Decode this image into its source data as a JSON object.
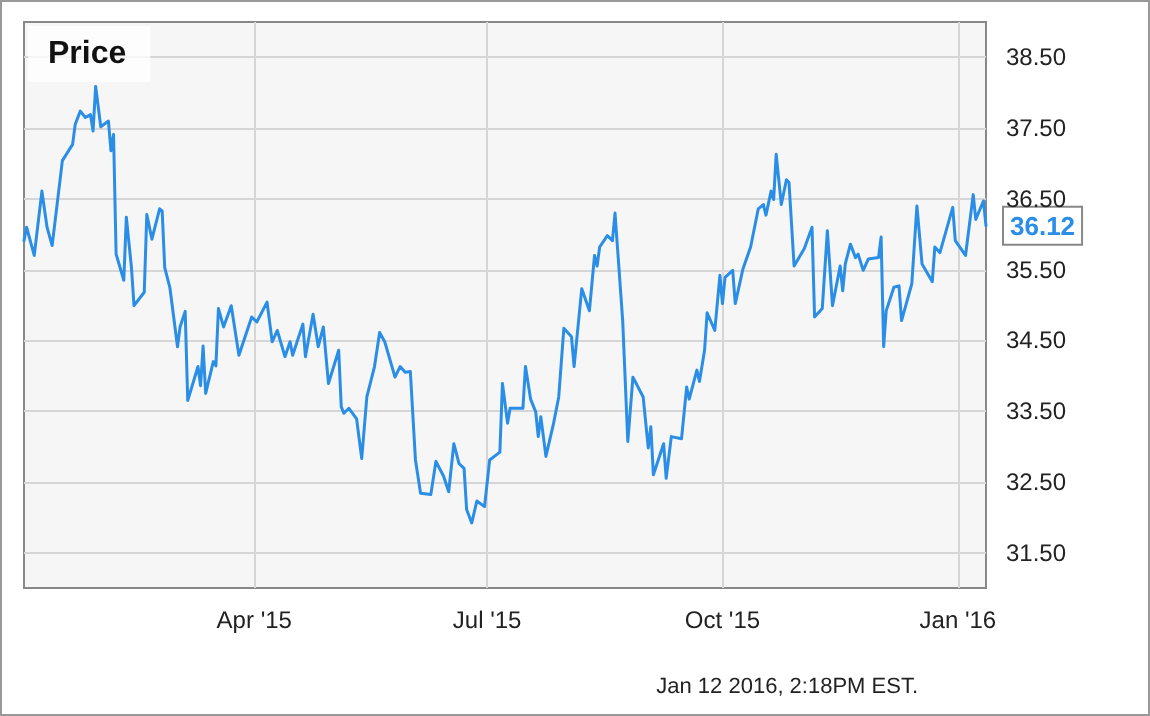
{
  "chart_data": {
    "type": "line",
    "title": "Price",
    "x": [
      "2015-01-01",
      "2015-01-02",
      "2015-01-05",
      "2015-01-08",
      "2015-01-10",
      "2015-01-12",
      "2015-01-16",
      "2015-01-20",
      "2015-01-21",
      "2015-01-23",
      "2015-01-25",
      "2015-01-27",
      "2015-01-28",
      "2015-01-29",
      "2015-01-31",
      "2015-02-03",
      "2015-02-04",
      "2015-02-05",
      "2015-02-06",
      "2015-02-09",
      "2015-02-10",
      "2015-02-12",
      "2015-02-13",
      "2015-02-17",
      "2015-02-18",
      "2015-02-20",
      "2015-02-23",
      "2015-02-24",
      "2015-02-25",
      "2015-02-27",
      "2015-03-02",
      "2015-03-03",
      "2015-03-05",
      "2015-03-06",
      "2015-03-10",
      "2015-03-11",
      "2015-03-12",
      "2015-03-13",
      "2015-03-16",
      "2015-03-17",
      "2015-03-18",
      "2015-03-20",
      "2015-03-23",
      "2015-03-26",
      "2015-03-31",
      "2015-04-02",
      "2015-04-06",
      "2015-04-08",
      "2015-04-10",
      "2015-04-13",
      "2015-04-15",
      "2015-04-16",
      "2015-04-20",
      "2015-04-21",
      "2015-04-24",
      "2015-04-26",
      "2015-04-28",
      "2015-04-30",
      "2015-05-04",
      "2015-05-05",
      "2015-05-06",
      "2015-05-08",
      "2015-05-11",
      "2015-05-13",
      "2015-05-15",
      "2015-05-18",
      "2015-05-20",
      "2015-05-22",
      "2015-05-26",
      "2015-05-28",
      "2015-05-30",
      "2015-06-01",
      "2015-06-03",
      "2015-06-05",
      "2015-06-09",
      "2015-06-11",
      "2015-06-14",
      "2015-06-16",
      "2015-06-18",
      "2015-06-20",
      "2015-06-22",
      "2015-06-23",
      "2015-06-25",
      "2015-06-27",
      "2015-06-30",
      "2015-07-02",
      "2015-07-06",
      "2015-07-07",
      "2015-07-09",
      "2015-07-10",
      "2015-07-15",
      "2015-07-16",
      "2015-07-18",
      "2015-07-20",
      "2015-07-21",
      "2015-07-22",
      "2015-07-24",
      "2015-07-27",
      "2015-07-29",
      "2015-07-31",
      "2015-08-03",
      "2015-08-04",
      "2015-08-07",
      "2015-08-10",
      "2015-08-12",
      "2015-08-13",
      "2015-08-14",
      "2015-08-17",
      "2015-08-19",
      "2015-08-20",
      "2015-08-23",
      "2015-08-25",
      "2015-08-27",
      "2015-08-31",
      "2015-09-02",
      "2015-09-03",
      "2015-09-04",
      "2015-09-08",
      "2015-09-09",
      "2015-09-11",
      "2015-09-15",
      "2015-09-17",
      "2015-09-18",
      "2015-09-21",
      "2015-09-22",
      "2015-09-24",
      "2015-09-25",
      "2015-09-28",
      "2015-09-30",
      "2015-10-01",
      "2015-10-02",
      "2015-10-05",
      "2015-10-06",
      "2015-10-09",
      "2015-10-12",
      "2015-10-15",
      "2015-10-17",
      "2015-10-18",
      "2015-10-20",
      "2015-10-21",
      "2015-10-22",
      "2015-10-24",
      "2015-10-26",
      "2015-10-27",
      "2015-10-29",
      "2015-11-02",
      "2015-11-05",
      "2015-11-06",
      "2015-11-09",
      "2015-11-11",
      "2015-11-13",
      "2015-11-16",
      "2015-11-17",
      "2015-11-18",
      "2015-11-20",
      "2015-11-22",
      "2015-11-23",
      "2015-11-25",
      "2015-11-27",
      "2015-12-01",
      "2015-12-02",
      "2015-12-03",
      "2015-12-04",
      "2015-12-07",
      "2015-12-09",
      "2015-12-10",
      "2015-12-14",
      "2015-12-16",
      "2015-12-18",
      "2015-12-22",
      "2015-12-23",
      "2015-12-25",
      "2015-12-30",
      "2015-12-31",
      "2016-01-04",
      "2016-01-07",
      "2016-01-08",
      "2016-01-11",
      "2016-01-12"
    ],
    "series": [
      {
        "color": "#2a8de6",
        "values": [
          35.91,
          36.1,
          35.7,
          36.61,
          36.1,
          35.84,
          37.04,
          37.27,
          37.55,
          37.74,
          37.65,
          37.69,
          37.46,
          38.09,
          37.52,
          37.6,
          37.18,
          37.41,
          35.72,
          35.35,
          36.24,
          35.53,
          34.99,
          35.18,
          36.28,
          35.93,
          36.36,
          36.33,
          35.53,
          35.25,
          34.41,
          34.69,
          34.91,
          33.65,
          34.13,
          33.86,
          34.42,
          33.75,
          34.2,
          34.14,
          34.95,
          34.69,
          34.99,
          34.29,
          34.83,
          34.76,
          35.04,
          34.48,
          34.64,
          34.27,
          34.48,
          34.29,
          34.73,
          34.27,
          34.87,
          34.41,
          34.69,
          33.89,
          34.36,
          33.56,
          33.47,
          33.54,
          33.39,
          32.83,
          33.7,
          34.13,
          34.61,
          34.48,
          33.98,
          34.13,
          34.05,
          34.06,
          32.81,
          32.34,
          32.32,
          32.79,
          32.58,
          32.36,
          33.04,
          32.76,
          32.69,
          32.11,
          31.92,
          32.23,
          32.15,
          32.81,
          32.92,
          33.89,
          33.33,
          33.54,
          33.54,
          34.13,
          33.67,
          33.49,
          33.14,
          33.42,
          32.86,
          33.33,
          33.7,
          34.67,
          34.55,
          34.13,
          35.23,
          34.92,
          35.7,
          35.55,
          35.82,
          35.98,
          35.91,
          36.3,
          34.78,
          33.07,
          33.98,
          33.7,
          32.98,
          33.28,
          32.6,
          33.04,
          32.55,
          33.14,
          33.11,
          33.84,
          33.67,
          34.08,
          33.92,
          34.36,
          34.89,
          34.64,
          35.42,
          35.02,
          35.39,
          35.49,
          35.02,
          35.51,
          35.82,
          36.36,
          36.42,
          36.27,
          36.61,
          36.49,
          37.13,
          36.42,
          36.77,
          36.73,
          35.55,
          35.8,
          36.1,
          34.83,
          34.95,
          36.05,
          34.99,
          35.55,
          35.2,
          35.58,
          35.86,
          35.67,
          35.72,
          35.49,
          35.65,
          35.67,
          35.96,
          34.41,
          34.92,
          35.25,
          35.27,
          34.78,
          35.3,
          36.4,
          35.58,
          35.33,
          35.82,
          35.74,
          36.38,
          35.91,
          35.7,
          36.56,
          36.21,
          36.47,
          36.12
        ]
      }
    ],
    "xlim": [
      "2015-01-01",
      "2016-01-12"
    ],
    "xticks": [
      {
        "value": "2015-04-01",
        "label": "Apr '15"
      },
      {
        "value": "2015-07-01",
        "label": "Jul '15"
      },
      {
        "value": "2015-10-01",
        "label": "Oct '15"
      },
      {
        "value": "2016-01-01",
        "label": "Jan '16"
      }
    ],
    "ylim": [
      31,
      39
    ],
    "yticks": [
      {
        "value": 31.5,
        "label": "31.50"
      },
      {
        "value": 32.5,
        "label": "32.50"
      },
      {
        "value": 33.5,
        "label": "33.50"
      },
      {
        "value": 34.5,
        "label": "34.50"
      },
      {
        "value": 35.5,
        "label": "35.50"
      },
      {
        "value": 36.5,
        "label": "36.50"
      },
      {
        "value": 37.5,
        "label": "37.50"
      },
      {
        "value": 38.5,
        "label": "38.50"
      }
    ],
    "grid": true,
    "marker": "none",
    "line_style": "solid",
    "annotations": [
      {
        "text": "36.12",
        "x": "2016-01-12",
        "y": 36.12
      },
      "Jan 12 2016, 2:18PM EST."
    ]
  }
}
